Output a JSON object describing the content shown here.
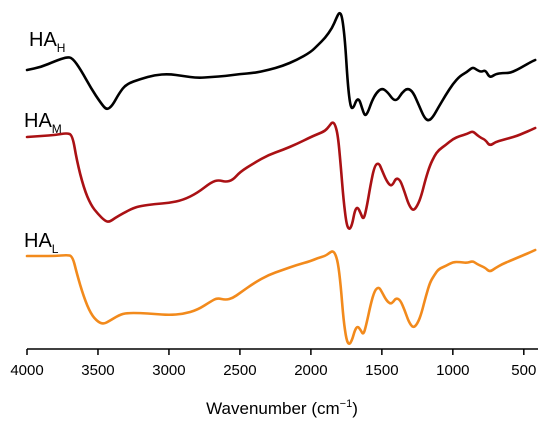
{
  "chart_data": {
    "type": "line",
    "xlabel": "Wavenumber (cm",
    "xlabel_sup": "−1",
    "xlabel_close": ")",
    "ylabel": "",
    "xlim": [
      4000,
      400
    ],
    "x_reversed": true,
    "x_ticks": [
      4000,
      3500,
      3000,
      2500,
      2000,
      1500,
      1000,
      500
    ],
    "y_axis_visible": false,
    "grid": false,
    "series": [
      {
        "name_main": "HA",
        "name_sub": "H",
        "color": "#000000",
        "points": [
          [
            4000,
            70
          ],
          [
            3900,
            67
          ],
          [
            3800,
            61
          ],
          [
            3720,
            57
          ],
          [
            3680,
            58
          ],
          [
            3620,
            70
          ],
          [
            3550,
            88
          ],
          [
            3480,
            103
          ],
          [
            3440,
            110
          ],
          [
            3400,
            106
          ],
          [
            3350,
            93
          ],
          [
            3300,
            84
          ],
          [
            3200,
            79
          ],
          [
            3100,
            75
          ],
          [
            3000,
            74
          ],
          [
            2900,
            76
          ],
          [
            2800,
            78
          ],
          [
            2700,
            77
          ],
          [
            2600,
            76
          ],
          [
            2500,
            74
          ],
          [
            2400,
            73
          ],
          [
            2300,
            70
          ],
          [
            2200,
            66
          ],
          [
            2100,
            60
          ],
          [
            2000,
            52
          ],
          [
            1950,
            45
          ],
          [
            1900,
            38
          ],
          [
            1850,
            28
          ],
          [
            1820,
            18
          ],
          [
            1800,
            12
          ],
          [
            1780,
            16
          ],
          [
            1760,
            40
          ],
          [
            1740,
            85
          ],
          [
            1720,
            108
          ],
          [
            1700,
            108
          ],
          [
            1680,
            100
          ],
          [
            1660,
            99
          ],
          [
            1640,
            108
          ],
          [
            1620,
            116
          ],
          [
            1600,
            113
          ],
          [
            1570,
            101
          ],
          [
            1540,
            93
          ],
          [
            1500,
            88
          ],
          [
            1460,
            92
          ],
          [
            1420,
            100
          ],
          [
            1390,
            100
          ],
          [
            1360,
            93
          ],
          [
            1320,
            88
          ],
          [
            1280,
            92
          ],
          [
            1240,
            105
          ],
          [
            1200,
            118
          ],
          [
            1170,
            121
          ],
          [
            1140,
            117
          ],
          [
            1100,
            107
          ],
          [
            1050,
            95
          ],
          [
            1000,
            84
          ],
          [
            950,
            76
          ],
          [
            900,
            72
          ],
          [
            860,
            67
          ],
          [
            830,
            70
          ],
          [
            800,
            72
          ],
          [
            770,
            70
          ],
          [
            740,
            78
          ],
          [
            700,
            74
          ],
          [
            650,
            73
          ],
          [
            600,
            73
          ],
          [
            550,
            70
          ],
          [
            500,
            66
          ],
          [
            450,
            62
          ],
          [
            420,
            60
          ]
        ]
      },
      {
        "name_main": "HA",
        "name_sub": "M",
        "color": "#aa1114",
        "points": [
          [
            4000,
            137
          ],
          [
            3900,
            136
          ],
          [
            3800,
            135
          ],
          [
            3720,
            133
          ],
          [
            3680,
            135
          ],
          [
            3650,
            160
          ],
          [
            3600,
            188
          ],
          [
            3550,
            205
          ],
          [
            3500,
            214
          ],
          [
            3450,
            221
          ],
          [
            3420,
            222
          ],
          [
            3380,
            218
          ],
          [
            3320,
            213
          ],
          [
            3250,
            208
          ],
          [
            3200,
            206
          ],
          [
            3100,
            204
          ],
          [
            3000,
            203
          ],
          [
            2900,
            200
          ],
          [
            2800,
            193
          ],
          [
            2700,
            182
          ],
          [
            2650,
            180
          ],
          [
            2600,
            182
          ],
          [
            2550,
            180
          ],
          [
            2500,
            172
          ],
          [
            2400,
            163
          ],
          [
            2300,
            155
          ],
          [
            2200,
            150
          ],
          [
            2100,
            144
          ],
          [
            2000,
            137
          ],
          [
            1950,
            134
          ],
          [
            1900,
            131
          ],
          [
            1870,
            126
          ],
          [
            1850,
            122
          ],
          [
            1830,
            124
          ],
          [
            1810,
            135
          ],
          [
            1790,
            165
          ],
          [
            1770,
            200
          ],
          [
            1750,
            224
          ],
          [
            1730,
            230
          ],
          [
            1710,
            225
          ],
          [
            1690,
            210
          ],
          [
            1670,
            207
          ],
          [
            1650,
            213
          ],
          [
            1630,
            220
          ],
          [
            1610,
            210
          ],
          [
            1580,
            185
          ],
          [
            1550,
            165
          ],
          [
            1520,
            163
          ],
          [
            1500,
            170
          ],
          [
            1470,
            180
          ],
          [
            1440,
            186
          ],
          [
            1420,
            184
          ],
          [
            1400,
            178
          ],
          [
            1370,
            180
          ],
          [
            1340,
            192
          ],
          [
            1310,
            205
          ],
          [
            1280,
            211
          ],
          [
            1250,
            206
          ],
          [
            1220,
            195
          ],
          [
            1190,
            178
          ],
          [
            1160,
            165
          ],
          [
            1130,
            156
          ],
          [
            1100,
            150
          ],
          [
            1050,
            145
          ],
          [
            1000,
            139
          ],
          [
            950,
            136
          ],
          [
            900,
            134
          ],
          [
            860,
            131
          ],
          [
            830,
            135
          ],
          [
            800,
            138
          ],
          [
            770,
            140
          ],
          [
            740,
            146
          ],
          [
            700,
            142
          ],
          [
            650,
            140
          ],
          [
            600,
            138
          ],
          [
            550,
            136
          ],
          [
            500,
            133
          ],
          [
            450,
            130
          ],
          [
            420,
            128
          ]
        ]
      },
      {
        "name_main": "HA",
        "name_sub": "L",
        "color": "#f28a1c",
        "points": [
          [
            4000,
            256
          ],
          [
            3900,
            256
          ],
          [
            3800,
            256
          ],
          [
            3720,
            255
          ],
          [
            3680,
            256
          ],
          [
            3650,
            273
          ],
          [
            3600,
            297
          ],
          [
            3550,
            314
          ],
          [
            3500,
            322
          ],
          [
            3460,
            324
          ],
          [
            3420,
            321
          ],
          [
            3350,
            315
          ],
          [
            3300,
            313
          ],
          [
            3200,
            313
          ],
          [
            3100,
            314
          ],
          [
            3000,
            315
          ],
          [
            2900,
            314
          ],
          [
            2800,
            310
          ],
          [
            2700,
            301
          ],
          [
            2660,
            298
          ],
          [
            2600,
            300
          ],
          [
            2550,
            298
          ],
          [
            2500,
            293
          ],
          [
            2400,
            283
          ],
          [
            2300,
            275
          ],
          [
            2200,
            270
          ],
          [
            2100,
            265
          ],
          [
            2000,
            261
          ],
          [
            1950,
            258
          ],
          [
            1900,
            256
          ],
          [
            1870,
            253
          ],
          [
            1850,
            251
          ],
          [
            1830,
            253
          ],
          [
            1810,
            262
          ],
          [
            1790,
            285
          ],
          [
            1770,
            320
          ],
          [
            1750,
            340
          ],
          [
            1730,
            345
          ],
          [
            1710,
            340
          ],
          [
            1690,
            330
          ],
          [
            1670,
            326
          ],
          [
            1650,
            330
          ],
          [
            1630,
            335
          ],
          [
            1610,
            325
          ],
          [
            1580,
            305
          ],
          [
            1550,
            290
          ],
          [
            1520,
            287
          ],
          [
            1500,
            292
          ],
          [
            1470,
            300
          ],
          [
            1440,
            304
          ],
          [
            1420,
            302
          ],
          [
            1400,
            298
          ],
          [
            1370,
            300
          ],
          [
            1340,
            310
          ],
          [
            1310,
            322
          ],
          [
            1280,
            328
          ],
          [
            1250,
            324
          ],
          [
            1220,
            313
          ],
          [
            1190,
            296
          ],
          [
            1160,
            282
          ],
          [
            1130,
            275
          ],
          [
            1100,
            269
          ],
          [
            1050,
            266
          ],
          [
            1000,
            262
          ],
          [
            950,
            262
          ],
          [
            900,
            263
          ],
          [
            860,
            261
          ],
          [
            830,
            264
          ],
          [
            800,
            266
          ],
          [
            770,
            268
          ],
          [
            740,
            272
          ],
          [
            700,
            268
          ],
          [
            650,
            264
          ],
          [
            600,
            261
          ],
          [
            550,
            258
          ],
          [
            500,
            255
          ],
          [
            450,
            252
          ],
          [
            420,
            250
          ]
        ]
      }
    ]
  }
}
